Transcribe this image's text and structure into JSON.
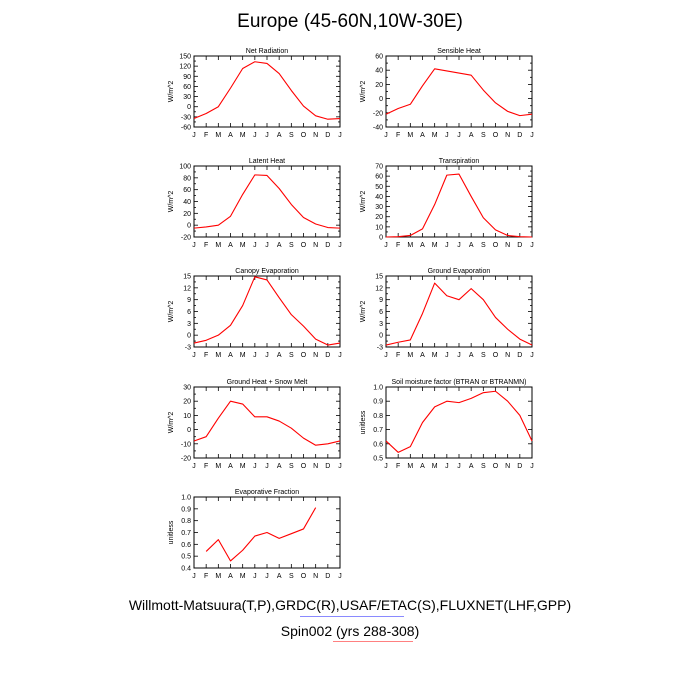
{
  "title": "Europe (45-60N,10W-30E)",
  "footer": {
    "source_line": "Willmott-Matsuura(T,P),GRDC(R),USAF/ETAC(S),FLUXNET(LHF,GPP)",
    "run_line": "Spin002 (yrs 288-308)",
    "source_underline_color": "#8a8aff",
    "run_underline_color": "#ff8080"
  },
  "line_color": "#ff0000",
  "chart_data": [
    {
      "type": "line",
      "title": "Net Radiation",
      "ylabel": "W/m^2",
      "x": [
        "J",
        "F",
        "M",
        "A",
        "M",
        "J",
        "J",
        "A",
        "S",
        "O",
        "N",
        "D",
        "J"
      ],
      "ylim": [
        -60,
        150
      ],
      "yticks": [
        -60,
        -45,
        -30,
        -15,
        0,
        15,
        30,
        45,
        60,
        75,
        90,
        105,
        120,
        135,
        150
      ],
      "yticklabels": [
        "-60",
        "",
        "-30",
        "",
        "0",
        "",
        "30",
        "",
        "60",
        "",
        "90",
        "",
        "120",
        "",
        "150"
      ],
      "series": [
        {
          "name": "Net Radiation",
          "values": [
            -35,
            -20,
            0,
            55,
            113,
            133,
            128,
            98,
            48,
            2,
            -27,
            -37,
            -35
          ]
        }
      ]
    },
    {
      "type": "line",
      "title": "Sensible Heat",
      "ylabel": "W/m^2",
      "x": [
        "J",
        "F",
        "M",
        "A",
        "M",
        "J",
        "J",
        "A",
        "S",
        "O",
        "N",
        "D",
        "J"
      ],
      "ylim": [
        -40,
        60
      ],
      "yticks": [
        -40,
        -30,
        -20,
        -10,
        0,
        10,
        20,
        30,
        40,
        50,
        60
      ],
      "yticklabels": [
        "-40",
        "",
        "-20",
        "",
        "0",
        "",
        "20",
        "",
        "40",
        "",
        "60"
      ],
      "series": [
        {
          "name": "Sensible Heat",
          "values": [
            -22,
            -14,
            -8,
            18,
            42,
            39,
            36,
            33,
            12,
            -6,
            -18,
            -24,
            -22
          ]
        }
      ]
    },
    {
      "type": "line",
      "title": "Latent Heat",
      "ylabel": "W/m^2",
      "x": [
        "J",
        "F",
        "M",
        "A",
        "M",
        "J",
        "J",
        "A",
        "S",
        "O",
        "N",
        "D",
        "J"
      ],
      "ylim": [
        -20,
        100
      ],
      "yticks": [
        -20,
        -10,
        0,
        10,
        20,
        30,
        40,
        50,
        60,
        70,
        80,
        90,
        100
      ],
      "yticklabels": [
        "-20",
        "",
        "0",
        "",
        "20",
        "",
        "40",
        "",
        "60",
        "",
        "80",
        "",
        "100"
      ],
      "series": [
        {
          "name": "Latent Heat",
          "values": [
            -5,
            -3,
            0,
            15,
            52,
            85,
            84,
            62,
            35,
            13,
            2,
            -4,
            -5
          ]
        }
      ]
    },
    {
      "type": "line",
      "title": "Transpiration",
      "ylabel": "W/m^2",
      "x": [
        "J",
        "F",
        "M",
        "A",
        "M",
        "J",
        "J",
        "A",
        "S",
        "O",
        "N",
        "D",
        "J"
      ],
      "ylim": [
        0,
        70
      ],
      "yticks": [
        0,
        5,
        10,
        15,
        20,
        25,
        30,
        35,
        40,
        45,
        50,
        55,
        60,
        65,
        70
      ],
      "yticklabels": [
        "0",
        "",
        "10",
        "",
        "20",
        "",
        "30",
        "",
        "40",
        "",
        "50",
        "",
        "60",
        "",
        "70"
      ],
      "series": [
        {
          "name": "Transpiration",
          "values": [
            0,
            0.3,
            1.5,
            8,
            32,
            61,
            62,
            40,
            19,
            7,
            1.5,
            0.3,
            0
          ]
        }
      ]
    },
    {
      "type": "line",
      "title": "Canopy Evaporation",
      "ylabel": "W/m^2",
      "x": [
        "J",
        "F",
        "M",
        "A",
        "M",
        "J",
        "J",
        "A",
        "S",
        "O",
        "N",
        "D",
        "J"
      ],
      "ylim": [
        -3,
        15
      ],
      "yticks": [
        -3,
        -1.5,
        0,
        1.5,
        3,
        4.5,
        6,
        7.5,
        9,
        10.5,
        12,
        13.5,
        15
      ],
      "yticklabels": [
        "-3",
        "",
        "0",
        "",
        "3",
        "",
        "6",
        "",
        "9",
        "",
        "12",
        "",
        "15"
      ],
      "series": [
        {
          "name": "Canopy Evaporation",
          "values": [
            -2,
            -1.3,
            0,
            2.5,
            7.5,
            14.8,
            14,
            9.5,
            5.2,
            2.3,
            -1,
            -2.5,
            -2
          ]
        }
      ]
    },
    {
      "type": "line",
      "title": "Ground Evaporation",
      "ylabel": "W/m^2",
      "x": [
        "J",
        "F",
        "M",
        "A",
        "M",
        "J",
        "J",
        "A",
        "S",
        "O",
        "N",
        "D",
        "J"
      ],
      "ylim": [
        -3,
        15
      ],
      "yticks": [
        -3,
        -1.5,
        0,
        1.5,
        3,
        4.5,
        6,
        7.5,
        9,
        10.5,
        12,
        13.5,
        15
      ],
      "yticklabels": [
        "-3",
        "",
        "0",
        "",
        "3",
        "",
        "6",
        "",
        "9",
        "",
        "12",
        "",
        "15"
      ],
      "series": [
        {
          "name": "Ground Evaporation",
          "values": [
            -2.5,
            -1.8,
            -1.2,
            5.5,
            13.2,
            10,
            9,
            11.8,
            9,
            4.5,
            1.5,
            -1,
            -2.5
          ]
        }
      ]
    },
    {
      "type": "line",
      "title": "Ground Heat + Snow Melt",
      "ylabel": "W/m^2",
      "x": [
        "J",
        "F",
        "M",
        "A",
        "M",
        "J",
        "J",
        "A",
        "S",
        "O",
        "N",
        "D",
        "J"
      ],
      "ylim": [
        -20,
        30
      ],
      "yticks": [
        -20,
        -15,
        -10,
        -5,
        0,
        5,
        10,
        15,
        20,
        25,
        30
      ],
      "yticklabels": [
        "-20",
        "",
        "-10",
        "",
        "0",
        "",
        "10",
        "",
        "20",
        "",
        "30"
      ],
      "series": [
        {
          "name": "Ground Heat + Snow Melt",
          "values": [
            -8,
            -5,
            8,
            20,
            18,
            9,
            9,
            6,
            1,
            -6,
            -11,
            -10,
            -8
          ]
        }
      ]
    },
    {
      "type": "line",
      "title": "Soil moisture factor (BTRAN or BTRANMN)",
      "ylabel": "unitless",
      "x": [
        "J",
        "F",
        "M",
        "A",
        "M",
        "J",
        "J",
        "A",
        "S",
        "O",
        "N",
        "D",
        "J"
      ],
      "ylim": [
        0.5,
        1.0
      ],
      "yticks": [
        0.5,
        0.6,
        0.7,
        0.8,
        0.9,
        1.0
      ],
      "yticklabels": [
        "0.5",
        "0.6",
        "0.7",
        "0.8",
        "0.9",
        "1.0"
      ],
      "series": [
        {
          "name": "Soil moisture factor",
          "values": [
            0.62,
            0.54,
            0.58,
            0.75,
            0.86,
            0.9,
            0.89,
            0.92,
            0.96,
            0.97,
            0.9,
            0.8,
            0.62
          ]
        }
      ]
    },
    {
      "type": "line",
      "title": "Evaporative Fraction",
      "ylabel": "unitless",
      "x": [
        "J",
        "F",
        "M",
        "A",
        "M",
        "J",
        "J",
        "A",
        "S",
        "O",
        "N",
        "D",
        "J"
      ],
      "ylim": [
        0.4,
        1.0
      ],
      "yticks": [
        0.4,
        0.5,
        0.6,
        0.7,
        0.8,
        0.9,
        1.0
      ],
      "yticklabels": [
        "0.4",
        "0.5",
        "0.6",
        "0.7",
        "0.8",
        "0.9",
        "1.0"
      ],
      "series": [
        {
          "name": "Evaporative Fraction",
          "values": [
            null,
            0.54,
            0.64,
            0.46,
            0.55,
            0.67,
            0.7,
            0.65,
            0.69,
            0.73,
            0.91,
            null,
            null
          ]
        }
      ]
    }
  ]
}
